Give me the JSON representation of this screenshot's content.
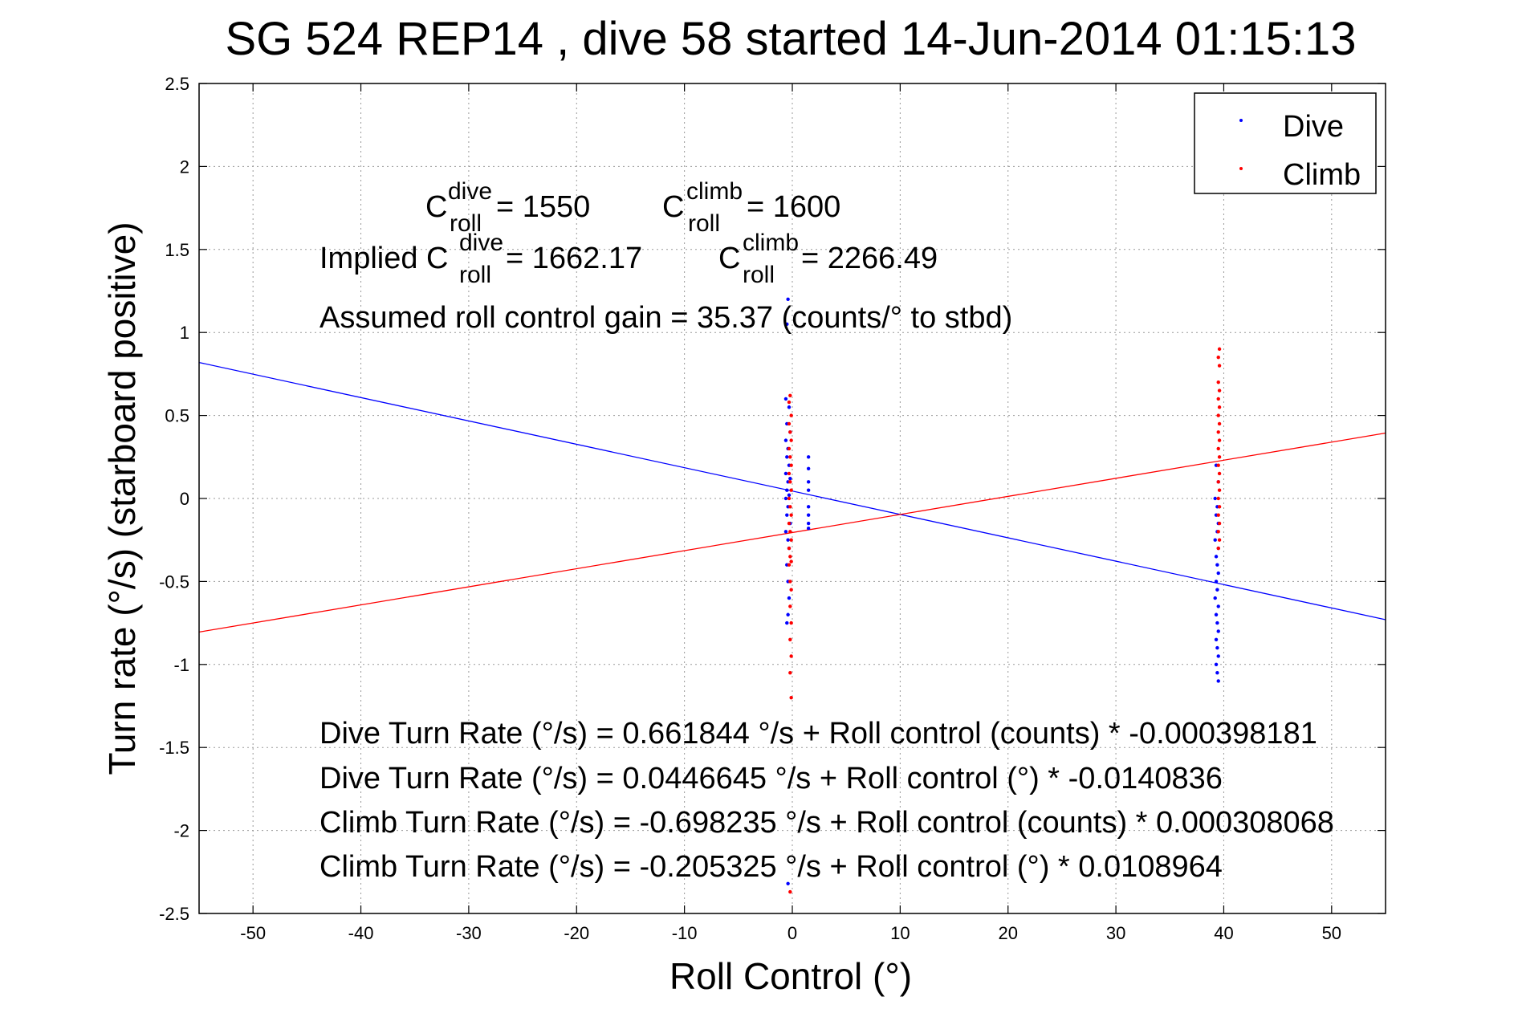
{
  "chart_data": {
    "type": "scatter",
    "title": "SG 524   REP14  , dive 58 started 14-Jun-2014 01:15:13",
    "xlabel": "Roll Control (°)",
    "ylabel": "Turn rate (°/s)  (starboard positive)",
    "xlim": [
      -55,
      55
    ],
    "ylim": [
      -2.5,
      2.5
    ],
    "x_ticks": [
      -50,
      -40,
      -30,
      -20,
      -10,
      0,
      10,
      20,
      30,
      40,
      50
    ],
    "y_ticks": [
      2.5,
      2,
      1.5,
      1,
      0.5,
      0,
      -0.5,
      -1,
      -1.5,
      -2,
      -2.5
    ],
    "x_tick_labels": [
      "-50",
      "-40",
      "-30",
      "-20",
      "-10",
      "0",
      "10",
      "20",
      "30",
      "40",
      "50"
    ],
    "y_tick_labels": [
      "2.5",
      "2",
      "1.5",
      "1",
      "0.5",
      "0",
      "-0.5",
      "-1",
      "-1.5",
      "-2",
      "-2.5"
    ],
    "grid": true,
    "legend_position": "top-right",
    "colors": {
      "dive": "#0000ff",
      "climb": "#ff0000"
    },
    "series": [
      {
        "name": "Dive",
        "color": "#0000ff",
        "points": [
          [
            -0.4,
            1.2
          ],
          [
            -0.5,
            1.05
          ],
          [
            -0.6,
            0.6
          ],
          [
            -0.3,
            0.55
          ],
          [
            -0.5,
            0.45
          ],
          [
            -0.2,
            0.4
          ],
          [
            -0.6,
            0.35
          ],
          [
            -0.4,
            0.3
          ],
          [
            -0.5,
            0.25
          ],
          [
            -0.3,
            0.2
          ],
          [
            -0.6,
            0.15
          ],
          [
            -0.2,
            0.12
          ],
          [
            -0.4,
            0.1
          ],
          [
            -0.5,
            0.05
          ],
          [
            -0.3,
            0.02
          ],
          [
            -0.6,
            0.0
          ],
          [
            -0.4,
            -0.05
          ],
          [
            -0.5,
            -0.1
          ],
          [
            -0.2,
            -0.15
          ],
          [
            -0.6,
            -0.2
          ],
          [
            -0.4,
            -0.25
          ],
          [
            -0.3,
            -0.3
          ],
          [
            -0.5,
            -0.4
          ],
          [
            -0.4,
            -0.5
          ],
          [
            -0.3,
            -0.6
          ],
          [
            -0.4,
            -0.7
          ],
          [
            -0.5,
            -0.75
          ],
          [
            -0.4,
            -2.32
          ],
          [
            1.5,
            0.25
          ],
          [
            1.5,
            0.18
          ],
          [
            1.5,
            0.1
          ],
          [
            1.5,
            0.05
          ],
          [
            1.5,
            -0.05
          ],
          [
            1.5,
            -0.1
          ],
          [
            1.5,
            -0.15
          ],
          [
            1.5,
            -0.18
          ],
          [
            39.3,
            0.2
          ],
          [
            39.5,
            0.1
          ],
          [
            39.2,
            0.0
          ],
          [
            39.4,
            -0.05
          ],
          [
            39.3,
            -0.1
          ],
          [
            39.5,
            -0.15
          ],
          [
            39.4,
            -0.2
          ],
          [
            39.2,
            -0.25
          ],
          [
            39.5,
            -0.3
          ],
          [
            39.3,
            -0.35
          ],
          [
            39.4,
            -0.4
          ],
          [
            39.5,
            -0.45
          ],
          [
            39.3,
            -0.5
          ],
          [
            39.4,
            -0.55
          ],
          [
            39.2,
            -0.6
          ],
          [
            39.5,
            -0.65
          ],
          [
            39.3,
            -0.7
          ],
          [
            39.4,
            -0.75
          ],
          [
            39.5,
            -0.8
          ],
          [
            39.3,
            -0.85
          ],
          [
            39.4,
            -0.9
          ],
          [
            39.5,
            -0.95
          ],
          [
            39.3,
            -1.0
          ],
          [
            39.4,
            -1.05
          ],
          [
            39.5,
            -1.1
          ]
        ]
      },
      {
        "name": "Climb",
        "color": "#ff0000",
        "points": [
          [
            -0.2,
            0.62
          ],
          [
            -0.3,
            0.58
          ],
          [
            -0.1,
            0.5
          ],
          [
            -0.3,
            0.45
          ],
          [
            -0.2,
            0.4
          ],
          [
            -0.1,
            0.35
          ],
          [
            -0.3,
            0.3
          ],
          [
            -0.2,
            0.25
          ],
          [
            -0.1,
            0.2
          ],
          [
            -0.3,
            0.15
          ],
          [
            -0.2,
            0.1
          ],
          [
            -0.1,
            0.05
          ],
          [
            -0.3,
            0.0
          ],
          [
            -0.2,
            -0.05
          ],
          [
            -0.1,
            -0.1
          ],
          [
            -0.3,
            -0.15
          ],
          [
            -0.2,
            -0.2
          ],
          [
            -0.1,
            -0.25
          ],
          [
            -0.3,
            -0.3
          ],
          [
            -0.2,
            -0.35
          ],
          [
            -0.1,
            -0.38
          ],
          [
            -0.3,
            -0.4
          ],
          [
            -0.2,
            -0.5
          ],
          [
            -0.1,
            -0.55
          ],
          [
            -0.2,
            -0.65
          ],
          [
            -0.1,
            -0.75
          ],
          [
            -0.2,
            -0.85
          ],
          [
            -0.1,
            -0.95
          ],
          [
            -0.2,
            -1.05
          ],
          [
            -0.1,
            -1.2
          ],
          [
            -0.2,
            -2.37
          ],
          [
            39.6,
            0.9
          ],
          [
            39.5,
            0.85
          ],
          [
            39.6,
            0.8
          ],
          [
            39.5,
            0.7
          ],
          [
            39.6,
            0.65
          ],
          [
            39.5,
            0.6
          ],
          [
            39.6,
            0.55
          ],
          [
            39.5,
            0.5
          ],
          [
            39.6,
            0.45
          ],
          [
            39.5,
            0.4
          ],
          [
            39.6,
            0.35
          ],
          [
            39.5,
            0.3
          ],
          [
            39.6,
            0.25
          ],
          [
            39.5,
            0.2
          ],
          [
            39.6,
            0.15
          ],
          [
            39.5,
            0.1
          ],
          [
            39.6,
            0.05
          ],
          [
            39.5,
            0.0
          ],
          [
            39.6,
            -0.05
          ],
          [
            39.5,
            -0.1
          ],
          [
            39.6,
            -0.15
          ],
          [
            39.5,
            -0.2
          ],
          [
            39.6,
            -0.25
          ],
          [
            39.5,
            -0.3
          ]
        ]
      }
    ],
    "fit_lines": [
      {
        "name": "Dive fit",
        "color": "#0000ff",
        "intercept": 0.0446645,
        "slope": -0.0140836
      },
      {
        "name": "Climb fit",
        "color": "#ff0000",
        "intercept": -0.205325,
        "slope": 0.0108964
      }
    ]
  },
  "legend": {
    "dive_label": "Dive",
    "climb_label": "Climb"
  },
  "annotations": {
    "c_roll_base": "C",
    "dive_sup": "dive",
    "climb_sup": "climb",
    "roll_sub": "roll",
    "c_dive_value": " = 1550",
    "c_climb_value": " = 1600",
    "implied_prefix": "Implied C",
    "implied_dive_value": " = 1662.17",
    "implied_climb_value": " = 2266.49",
    "gain_text": "Assumed roll control gain = 35.37 (counts/° to stbd)",
    "eq1": "Dive Turn Rate (°/s) = 0.661844 °/s + Roll control (counts) * -0.000398181",
    "eq2": "Dive Turn Rate (°/s) = 0.0446645 °/s + Roll control (°) * -0.0140836",
    "eq3": "Climb Turn Rate (°/s) = -0.698235 °/s + Roll control (counts) * 0.000308068",
    "eq4": "Climb Turn Rate (°/s) = -0.205325 °/s + Roll control (°) * 0.0108964"
  }
}
